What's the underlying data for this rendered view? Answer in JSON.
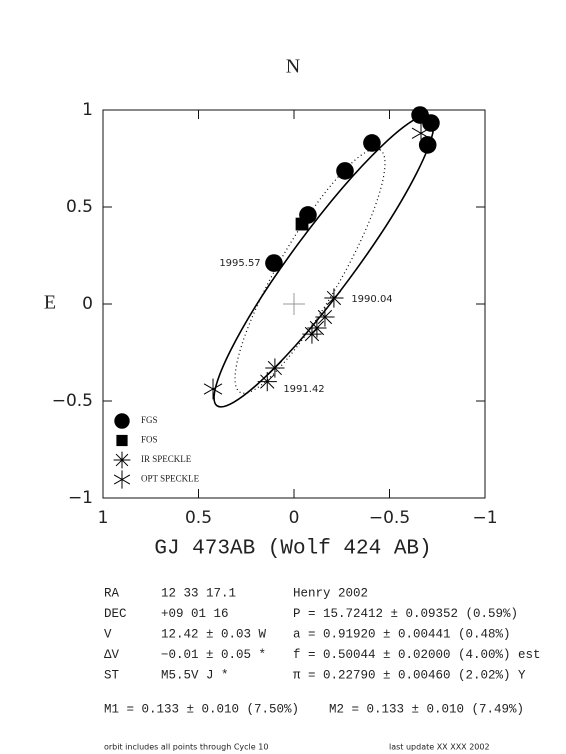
{
  "chart_data": {
    "type": "scatter",
    "north_label": "N",
    "east_label": "E",
    "title": "GJ 473AB (Wolf 424 AB)",
    "xlim": [
      1,
      -1
    ],
    "ylim": [
      -1,
      1
    ],
    "xticks": [
      1,
      0.5,
      0,
      {
        "value": -0.5,
        "label": "−0.5"
      },
      {
        "value": -1,
        "label": "−1"
      }
    ],
    "yticks": [
      {
        "value": -1,
        "label": "−1"
      },
      {
        "value": -0.5,
        "label": "−0.5"
      },
      0,
      0.5,
      1
    ],
    "color": "#000000",
    "series": [
      {
        "name": "FGS",
        "marker": "circle",
        "x": [
          -0.66,
          -0.717,
          -0.7,
          -0.408,
          -0.267,
          -0.073,
          0.105
        ],
        "y": [
          0.974,
          0.933,
          0.82,
          0.83,
          0.686,
          0.459,
          0.211
        ]
      },
      {
        "name": "FOS",
        "marker": "square",
        "x": [
          -0.042
        ],
        "y": [
          0.412
        ]
      },
      {
        "name": "IR SPECKLE",
        "marker": "asterisk",
        "x": [
          -0.209,
          -0.162,
          -0.12,
          -0.094,
          0.1,
          0.14
        ],
        "y": [
          0.031,
          -0.067,
          -0.124,
          -0.155,
          -0.33,
          -0.4
        ]
      },
      {
        "name": "OPT SPECKLE",
        "marker": "star6",
        "x": [
          -0.665,
          0.424
        ],
        "y": [
          0.88,
          -0.438
        ]
      }
    ],
    "annotations": [
      "1995.57",
      "1990.04",
      "1991.42"
    ]
  },
  "info_rows": [
    [
      "RA",
      "12 33 17.1",
      "Henry 2002"
    ],
    [
      "DEC",
      "+09 01 16",
      "P = 15.72412 ± 0.09352 (0.59%)"
    ],
    [
      "V",
      "12.42 ± 0.03 W",
      "a = 0.91920 ± 0.00441 (0.48%)"
    ],
    [
      "ΔV",
      "−0.01 ± 0.05 *",
      "f = 0.50044 ± 0.02000 (4.00%) est"
    ],
    [
      "ST",
      "M5.5V J *",
      "π = 0.22790 ± 0.00460 (2.02%) Y"
    ]
  ],
  "masses": [
    "M1 = 0.133 ± 0.010 (7.50%)",
    "M2 = 0.133 ± 0.010 (7.49%)"
  ],
  "footer": [
    "orbit includes all points through Cycle 10",
    "last update XX XXX 2002"
  ]
}
